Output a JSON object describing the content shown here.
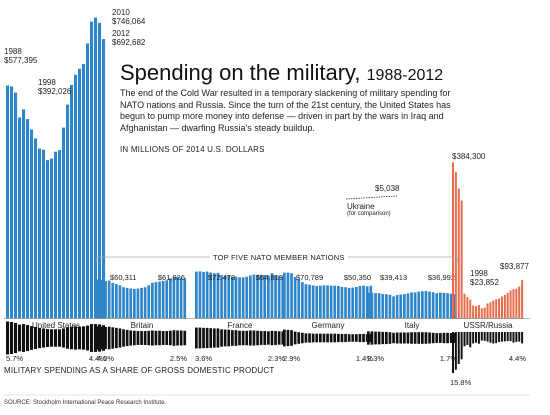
{
  "title": {
    "main": "Spending on the military,",
    "years": "1988-2012",
    "description": "The end of the Cold War resulted in a temporary slackening of military spending for NATO nations and Russia. Since the turn of the 21st century, the United States has begun to pump more money into defense — driven in part by the wars in Iraq and Afghanistan — dwarfing Russia's steady buildup.",
    "unit_note": "IN MILLIONS OF 2014 U.S. DOLLARS"
  },
  "section_label": "TOP FIVE NATO MEMBER NATIONS",
  "share_title": "MILITARY SPENDING AS A SHARE OF GROSS DOMESTIC PRODUCT",
  "source": "SOURCE: Stockholm International Peace Research Institute.",
  "colors": {
    "blue": "#2f86c8",
    "orange": "#e66a4c",
    "black": "#111111",
    "axis": "#999999"
  },
  "us_annotations": [
    {
      "year": "1988",
      "value": "$577,395"
    },
    {
      "year": "1998",
      "value": "$392,026"
    },
    {
      "year": "2010",
      "value": "$746,064"
    },
    {
      "year": "2012",
      "value": "$692,682"
    }
  ],
  "ukraine": {
    "value": "$5,038",
    "name": "Ukraine",
    "note": "(for comparison)"
  },
  "ussr_annotations": [
    {
      "year": "",
      "value": "$384,300"
    },
    {
      "year": "1998",
      "value": "$23,852"
    },
    {
      "year": "",
      "value": "$93,877"
    }
  ],
  "chart_data": {
    "type": "bar",
    "title": "Spending on the military, 1988-2012",
    "unit": "IN MILLIONS OF 2014 U.S. DOLLARS",
    "x": [
      1988,
      1989,
      1990,
      1991,
      1992,
      1993,
      1994,
      1995,
      1996,
      1997,
      1998,
      1999,
      2000,
      2001,
      2002,
      2003,
      2004,
      2005,
      2006,
      2007,
      2008,
      2009,
      2010,
      2011,
      2012
    ],
    "series": [
      {
        "name": "United States",
        "color": "blue",
        "spending": [
          577395,
          575000,
          560000,
          498000,
          518000,
          494000,
          468000,
          446000,
          421000,
          418000,
          392026,
          396000,
          413000,
          417000,
          473000,
          530000,
          579000,
          604000,
          619000,
          631000,
          682000,
          736000,
          746064,
          733000,
          692682
        ],
        "start_label": "",
        "end_label": "",
        "gdp_share": [
          5.7,
          5.5,
          5.2,
          4.6,
          4.8,
          4.5,
          4.1,
          3.8,
          3.5,
          3.3,
          3.1,
          3.0,
          3.0,
          3.0,
          3.3,
          3.7,
          3.9,
          4.0,
          3.9,
          4.0,
          4.3,
          4.8,
          4.8,
          4.7,
          4.4
        ],
        "gdp_start_label": "5.7%",
        "gdp_end_label": "4.4%"
      },
      {
        "name": "Britain",
        "color": "blue",
        "spending": [
          60311,
          59500,
          58000,
          58500,
          55000,
          53000,
          51000,
          48000,
          47000,
          46000,
          45500,
          46000,
          47000,
          48000,
          51000,
          55000,
          56000,
          57000,
          58000,
          59000,
          62000,
          64000,
          64000,
          63000,
          61926
        ],
        "start_label": "$60,311",
        "end_label": "$61,926",
        "gdp_share": [
          4.0,
          3.9,
          3.8,
          3.9,
          3.7,
          3.5,
          3.3,
          3.0,
          2.8,
          2.6,
          2.5,
          2.4,
          2.4,
          2.4,
          2.5,
          2.6,
          2.5,
          2.5,
          2.4,
          2.4,
          2.5,
          2.7,
          2.6,
          2.6,
          2.5
        ],
        "gdp_start_label": "4.0%",
        "gdp_end_label": "2.5%"
      },
      {
        "name": "France",
        "color": "blue",
        "spending": [
          72478,
          72800,
          72000,
          72500,
          71000,
          70000,
          70500,
          67000,
          66000,
          66500,
          64000,
          64500,
          63500,
          63500,
          64500,
          66500,
          68000,
          67500,
          67500,
          67000,
          66500,
          70000,
          67000,
          66000,
          64813
        ],
        "start_label": "$72,478",
        "end_label": "$64,813",
        "gdp_share": [
          3.6,
          3.6,
          3.5,
          3.5,
          3.4,
          3.3,
          3.3,
          3.0,
          2.9,
          2.9,
          2.7,
          2.7,
          2.5,
          2.5,
          2.5,
          2.6,
          2.6,
          2.5,
          2.4,
          2.4,
          2.3,
          2.5,
          2.4,
          2.3,
          2.3
        ],
        "gdp_start_label": "3.6%",
        "gdp_end_label": "2.3%"
      },
      {
        "name": "Germany",
        "color": "blue",
        "spending": [
          70789,
          71000,
          70000,
          64000,
          60000,
          56000,
          53000,
          52000,
          51000,
          50000,
          50500,
          51000,
          51000,
          50500,
          50500,
          50000,
          48500,
          48000,
          47000,
          47500,
          48500,
          50000,
          50500,
          49500,
          50350
        ],
        "start_label": "$70,789",
        "end_label": "$50,350",
        "gdp_share": [
          2.9,
          2.8,
          2.7,
          2.2,
          2.0,
          1.8,
          1.6,
          1.6,
          1.5,
          1.5,
          1.5,
          1.5,
          1.5,
          1.5,
          1.5,
          1.4,
          1.4,
          1.4,
          1.3,
          1.3,
          1.3,
          1.4,
          1.4,
          1.3,
          1.4
        ],
        "gdp_start_label": "2.9%",
        "gdp_end_label": "1.4%"
      },
      {
        "name": "Italy",
        "color": "blue",
        "spending": [
          39413,
          39600,
          38800,
          38900,
          37500,
          37200,
          36200,
          33800,
          36000,
          36700,
          37300,
          38400,
          40000,
          39900,
          41200,
          41800,
          42200,
          41200,
          40200,
          38800,
          39600,
          39200,
          38700,
          38000,
          36992
        ],
        "start_label": "$39,413",
        "end_label": "$36,992",
        "gdp_share": [
          2.3,
          2.3,
          2.2,
          2.2,
          2.1,
          2.1,
          2.0,
          1.8,
          1.9,
          1.9,
          1.9,
          1.9,
          2.0,
          2.0,
          2.0,
          2.0,
          2.0,
          1.9,
          1.8,
          1.7,
          1.7,
          1.8,
          1.8,
          1.7,
          1.7
        ],
        "gdp_start_label": "2.3%",
        "gdp_end_label": "1.7%"
      },
      {
        "name": "USSR/Russia",
        "color": "orange",
        "spending": [
          384300,
          360000,
          320000,
          290000,
          60000,
          52000,
          45000,
          31000,
          29000,
          32000,
          23852,
          26000,
          36000,
          39000,
          43000,
          46000,
          48000,
          53000,
          57000,
          62000,
          68000,
          71000,
          72000,
          78000,
          93877
        ],
        "start_label": "",
        "end_label": "",
        "gdp_share": [
          15.8,
          14.5,
          12.3,
          10.5,
          5.5,
          5.0,
          5.9,
          4.4,
          4.1,
          4.5,
          3.3,
          3.4,
          3.7,
          4.1,
          4.4,
          4.3,
          3.8,
          3.7,
          3.6,
          3.5,
          3.5,
          4.1,
          3.8,
          3.7,
          4.4
        ],
        "gdp_start_label": "15.8%",
        "gdp_end_label": "4.4%"
      }
    ],
    "ukraine": {
      "name": "Ukraine",
      "end_value": 5038
    }
  }
}
